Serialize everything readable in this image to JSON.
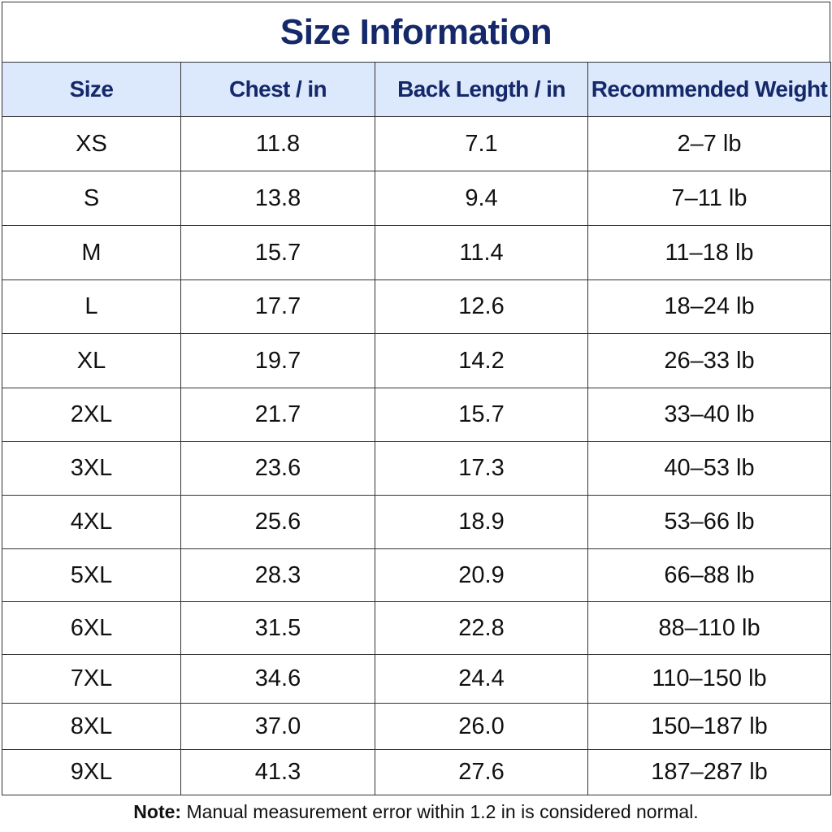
{
  "header": {
    "title": "Size Information"
  },
  "table": {
    "columns": [
      "Size",
      "Chest / in",
      "Back Length / in",
      "Recommended Weight"
    ],
    "rows": [
      [
        "XS",
        "11.8",
        "7.1",
        "2–7 lb"
      ],
      [
        "S",
        "13.8",
        "9.4",
        "7–11 lb"
      ],
      [
        "M",
        "15.7",
        "11.4",
        "11–18 lb"
      ],
      [
        "L",
        "17.7",
        "12.6",
        "18–24 lb"
      ],
      [
        "XL",
        "19.7",
        "14.2",
        "26–33 lb"
      ],
      [
        "2XL",
        "21.7",
        "15.7",
        "33–40 lb"
      ],
      [
        "3XL",
        "23.6",
        "17.3",
        "40–53 lb"
      ],
      [
        "4XL",
        "25.6",
        "18.9",
        "53–66 lb"
      ],
      [
        "5XL",
        "28.3",
        "20.9",
        "66–88 lb"
      ],
      [
        "6XL",
        "31.5",
        "22.8",
        "88–110 lb"
      ],
      [
        "7XL",
        "34.6",
        "24.4",
        "110–150 lb"
      ],
      [
        "8XL",
        "37.0",
        "26.0",
        "150–187 lb"
      ],
      [
        "9XL",
        "41.3",
        "27.6",
        "187–287 lb"
      ]
    ]
  },
  "note": {
    "label": "Note:",
    "text": "Manual measurement error within 1.2 in is considered normal."
  }
}
